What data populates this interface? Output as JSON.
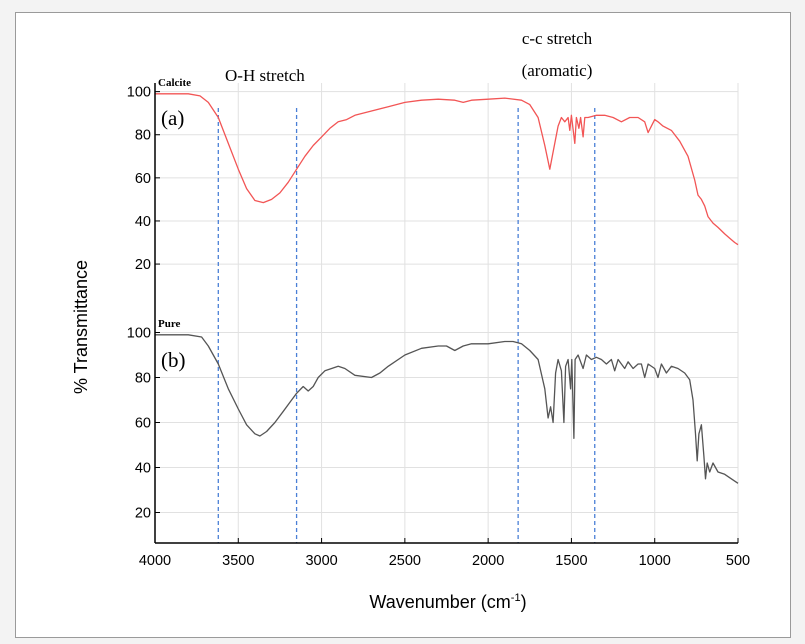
{
  "chart_data": {
    "type": "line",
    "xlabel": "Wavenumber (cm",
    "xlabel_sup": "-1",
    "xlabel_close": ")",
    "ylabel": "% Transmittance",
    "xlim": [
      4000,
      500
    ],
    "x_reversed": true,
    "x_ticks": [
      "4000",
      "3500",
      "3000",
      "2500",
      "2000",
      "1500",
      "1000",
      "500"
    ],
    "grid": true,
    "annotations": [
      {
        "text": "O-H stretch",
        "x": 3400
      },
      {
        "text": "c-c stretch",
        "x": 1600
      },
      {
        "text": "(aromatic)",
        "x": 1600
      }
    ],
    "reference_lines_x": [
      3620,
      3150,
      1820,
      1360
    ],
    "reference_line_color": "#4a7fd6",
    "panels": [
      {
        "name": "Calcite",
        "panel_label": "(a)",
        "color": "#f25555",
        "ylim": [
          14,
          104
        ],
        "y_ticks": [
          "100",
          "80",
          "60",
          "40",
          "20"
        ],
        "points": [
          [
            4000,
            99
          ],
          [
            3800,
            99
          ],
          [
            3730,
            98
          ],
          [
            3680,
            95
          ],
          [
            3620,
            88
          ],
          [
            3560,
            76
          ],
          [
            3500,
            64
          ],
          [
            3450,
            55
          ],
          [
            3400,
            49.5
          ],
          [
            3350,
            48.5
          ],
          [
            3300,
            50
          ],
          [
            3250,
            53
          ],
          [
            3200,
            58
          ],
          [
            3150,
            64
          ],
          [
            3100,
            70
          ],
          [
            3050,
            75
          ],
          [
            3000,
            79
          ],
          [
            2950,
            83
          ],
          [
            2900,
            86
          ],
          [
            2850,
            87
          ],
          [
            2800,
            89
          ],
          [
            2700,
            91
          ],
          [
            2600,
            93
          ],
          [
            2500,
            95
          ],
          [
            2400,
            96
          ],
          [
            2300,
            96.5
          ],
          [
            2200,
            96
          ],
          [
            2150,
            95
          ],
          [
            2100,
            96
          ],
          [
            2000,
            96.5
          ],
          [
            1900,
            97
          ],
          [
            1800,
            96
          ],
          [
            1750,
            94
          ],
          [
            1700,
            88
          ],
          [
            1660,
            75
          ],
          [
            1630,
            64
          ],
          [
            1610,
            72
          ],
          [
            1580,
            84
          ],
          [
            1560,
            88
          ],
          [
            1540,
            86
          ],
          [
            1520,
            88
          ],
          [
            1510,
            82
          ],
          [
            1500,
            89
          ],
          [
            1480,
            76
          ],
          [
            1470,
            88
          ],
          [
            1455,
            83
          ],
          [
            1445,
            88
          ],
          [
            1430,
            79
          ],
          [
            1420,
            88
          ],
          [
            1400,
            88
          ],
          [
            1350,
            89
          ],
          [
            1300,
            89
          ],
          [
            1250,
            88
          ],
          [
            1200,
            86
          ],
          [
            1150,
            88
          ],
          [
            1100,
            88
          ],
          [
            1060,
            86
          ],
          [
            1040,
            81
          ],
          [
            1020,
            84
          ],
          [
            1000,
            87
          ],
          [
            980,
            86
          ],
          [
            950,
            84
          ],
          [
            900,
            82
          ],
          [
            850,
            77
          ],
          [
            800,
            70
          ],
          [
            760,
            59
          ],
          [
            740,
            52
          ],
          [
            720,
            50
          ],
          [
            700,
            47
          ],
          [
            680,
            42
          ],
          [
            650,
            39
          ],
          [
            620,
            37
          ],
          [
            580,
            34
          ],
          [
            550,
            32
          ],
          [
            520,
            30
          ],
          [
            500,
            29
          ]
        ]
      },
      {
        "name": "Pure",
        "panel_label": "(b)",
        "color": "#555555",
        "ylim": [
          14,
          106
        ],
        "y_ticks": [
          "100",
          "80",
          "60",
          "40",
          "20"
        ],
        "points": [
          [
            4000,
            99
          ],
          [
            3800,
            99
          ],
          [
            3720,
            98
          ],
          [
            3680,
            94
          ],
          [
            3620,
            86
          ],
          [
            3560,
            75
          ],
          [
            3500,
            66
          ],
          [
            3450,
            59
          ],
          [
            3400,
            55
          ],
          [
            3370,
            54
          ],
          [
            3330,
            56
          ],
          [
            3280,
            60
          ],
          [
            3230,
            65
          ],
          [
            3180,
            70
          ],
          [
            3150,
            73
          ],
          [
            3110,
            76
          ],
          [
            3080,
            74
          ],
          [
            3050,
            76
          ],
          [
            3020,
            80
          ],
          [
            2980,
            83
          ],
          [
            2940,
            84
          ],
          [
            2900,
            85
          ],
          [
            2860,
            84
          ],
          [
            2800,
            81
          ],
          [
            2700,
            80
          ],
          [
            2650,
            82
          ],
          [
            2600,
            85
          ],
          [
            2500,
            90
          ],
          [
            2400,
            93
          ],
          [
            2300,
            94
          ],
          [
            2250,
            94
          ],
          [
            2200,
            92
          ],
          [
            2150,
            94
          ],
          [
            2100,
            95
          ],
          [
            2000,
            95
          ],
          [
            1900,
            96
          ],
          [
            1850,
            96
          ],
          [
            1800,
            95
          ],
          [
            1750,
            92
          ],
          [
            1700,
            88
          ],
          [
            1660,
            75
          ],
          [
            1640,
            62
          ],
          [
            1625,
            67
          ],
          [
            1610,
            60
          ],
          [
            1595,
            82
          ],
          [
            1580,
            88
          ],
          [
            1560,
            83
          ],
          [
            1545,
            60
          ],
          [
            1535,
            85
          ],
          [
            1520,
            88
          ],
          [
            1505,
            75
          ],
          [
            1498,
            88
          ],
          [
            1485,
            53
          ],
          [
            1478,
            88
          ],
          [
            1460,
            90
          ],
          [
            1430,
            84
          ],
          [
            1410,
            90
          ],
          [
            1380,
            88
          ],
          [
            1350,
            89
          ],
          [
            1320,
            88
          ],
          [
            1290,
            86
          ],
          [
            1260,
            88
          ],
          [
            1240,
            83
          ],
          [
            1220,
            88
          ],
          [
            1200,
            86
          ],
          [
            1180,
            84
          ],
          [
            1160,
            87
          ],
          [
            1130,
            84
          ],
          [
            1100,
            86
          ],
          [
            1080,
            86
          ],
          [
            1060,
            80
          ],
          [
            1040,
            86
          ],
          [
            1000,
            84
          ],
          [
            980,
            80
          ],
          [
            960,
            86
          ],
          [
            930,
            82
          ],
          [
            900,
            85
          ],
          [
            860,
            84
          ],
          [
            820,
            82
          ],
          [
            790,
            79
          ],
          [
            770,
            70
          ],
          [
            755,
            55
          ],
          [
            745,
            43
          ],
          [
            735,
            55
          ],
          [
            720,
            59
          ],
          [
            705,
            45
          ],
          [
            695,
            35
          ],
          [
            685,
            42
          ],
          [
            670,
            38
          ],
          [
            650,
            42
          ],
          [
            620,
            38
          ],
          [
            580,
            37
          ],
          [
            540,
            35
          ],
          [
            500,
            33
          ]
        ]
      }
    ]
  }
}
